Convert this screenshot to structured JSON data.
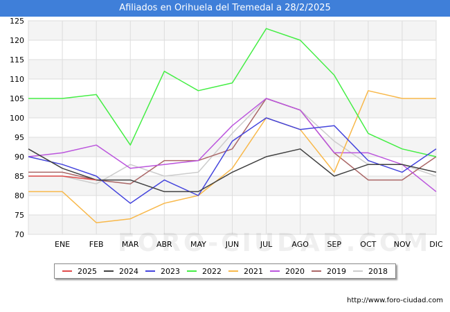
{
  "title": "Afiliados en Orihuela del Tremedal a 28/2/2025",
  "footer_url": "http://www.foro-ciudad.com",
  "watermark": "FORO-CIUDAD.COM",
  "chart_data": {
    "type": "line",
    "title": "Afiliados en Orihuela del Tremedal a 28/2/2025",
    "categories": [
      "",
      "ENE",
      "FEB",
      "MAR",
      "ABR",
      "MAY",
      "JUN",
      "JUL",
      "AGO",
      "SEP",
      "OCT",
      "NOV",
      "DIC"
    ],
    "ylim": [
      70,
      125
    ],
    "yticks": [
      70,
      75,
      80,
      85,
      90,
      95,
      100,
      105,
      110,
      115,
      120,
      125
    ],
    "grid": true,
    "legend_position": "bottom",
    "series": [
      {
        "name": "2025",
        "color": "#e04b4b",
        "values": [
          85,
          85,
          84,
          null,
          null,
          null,
          null,
          null,
          null,
          null,
          null,
          null,
          null
        ]
      },
      {
        "name": "2024",
        "color": "#404040",
        "values": [
          92,
          87,
          84,
          84,
          81,
          81,
          86,
          90,
          92,
          85,
          88,
          88,
          86
        ]
      },
      {
        "name": "2023",
        "color": "#4444dd",
        "values": [
          90,
          88,
          85,
          78,
          84,
          80,
          94,
          100,
          97,
          98,
          89,
          86,
          92
        ]
      },
      {
        "name": "2022",
        "color": "#44ee44",
        "values": [
          105,
          105,
          106,
          93,
          112,
          107,
          109,
          123,
          120,
          111,
          96,
          92,
          90
        ]
      },
      {
        "name": "2021",
        "color": "#f8b84a",
        "values": [
          81,
          81,
          73,
          74,
          78,
          80,
          87,
          100,
          97,
          86,
          107,
          105,
          105
        ]
      },
      {
        "name": "2020",
        "color": "#bb55dd",
        "values": [
          90,
          91,
          93,
          87,
          88,
          89,
          98,
          105,
          102,
          91,
          91,
          88,
          81
        ]
      },
      {
        "name": "2019",
        "color": "#aa6666",
        "values": [
          86,
          86,
          84,
          83,
          89,
          89,
          92,
          105,
          102,
          91,
          84,
          84,
          90
        ]
      },
      {
        "name": "2018",
        "color": "#cccccc",
        "values": [
          85,
          85,
          83,
          88,
          85,
          86,
          96,
          105,
          102,
          94,
          88,
          88,
          85
        ]
      }
    ]
  }
}
